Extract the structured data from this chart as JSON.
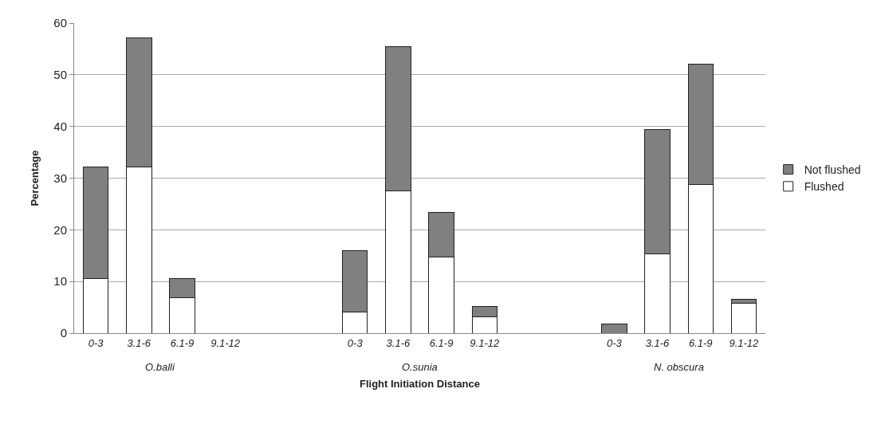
{
  "chart_data": {
    "type": "bar",
    "stacked": true,
    "xlabel": "Flight Initiation Distance",
    "ylabel": "Percentage",
    "categories": [
      "0-3",
      "3.1-6",
      "6.1-9",
      "9.1-12",
      null,
      null,
      "0-3",
      "3.1-6",
      "6.1-9",
      "9.1-12",
      null,
      null,
      "0-3",
      "3.1-6",
      "6.1-9",
      "9.1-12"
    ],
    "series": [
      {
        "name": "Flushed",
        "color": "#ffffff",
        "values": [
          10.6,
          32.1,
          6.9,
          null,
          null,
          null,
          4.1,
          27.6,
          14.8,
          3.2,
          null,
          null,
          null,
          15.4,
          28.8,
          5.8
        ]
      },
      {
        "name": "Not flushed",
        "color": "#808080",
        "values": [
          21.6,
          25.1,
          3.7,
          null,
          null,
          null,
          11.9,
          27.9,
          8.6,
          2.0,
          null,
          null,
          1.8,
          24.0,
          23.3,
          0.8
        ]
      }
    ],
    "annotations": [
      "O.balli",
      "O.sunia",
      "N. obscura"
    ],
    "ylim": [
      0,
      60
    ],
    "yticks": [
      0,
      10,
      20,
      30,
      40,
      50,
      60
    ],
    "grid": "y",
    "legend": "right"
  }
}
